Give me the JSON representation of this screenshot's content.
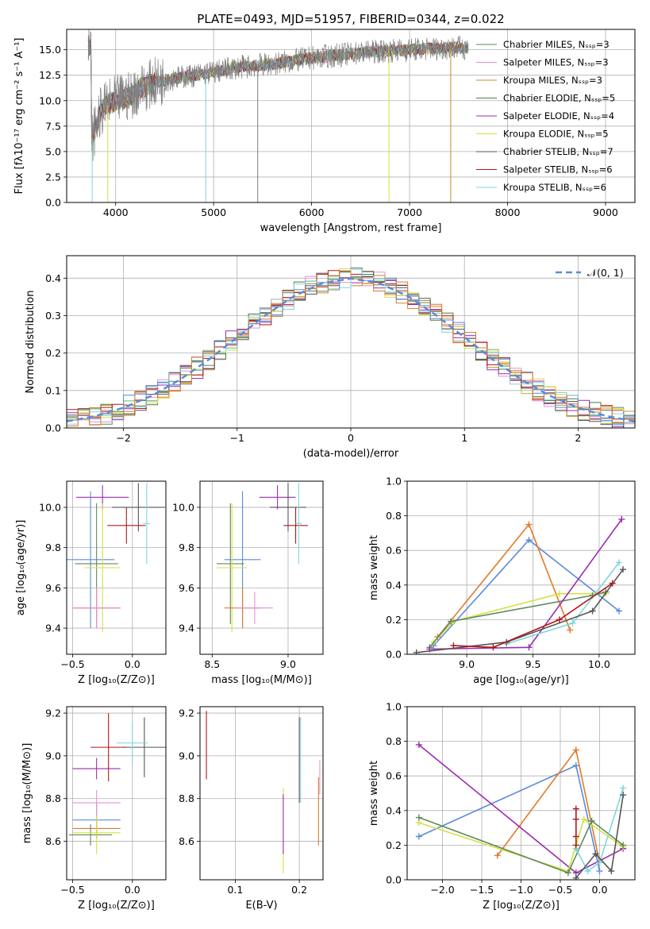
{
  "colors": [
    "#5e8a5e",
    "#e58fd6",
    "#c8892c",
    "#4e7a3c",
    "#9a2eb0",
    "#d6e040",
    "#555555",
    "#b01818",
    "#7fd6dc"
  ],
  "chart_data": [
    {
      "id": "spectrum",
      "type": "line",
      "title": "PLATE=0493, MJD=51957, FIBERID=0344, z=0.022",
      "xlabel": "wavelength [Angstrom, rest frame]",
      "ylabel": "Flux [fλ10⁻¹⁷ erg cm⁻² s⁻¹ A⁻¹]",
      "xlim": [
        3500,
        9300
      ],
      "ylim": [
        0,
        17
      ],
      "xticks": [
        "4000",
        "5000",
        "6000",
        "7000",
        "8000",
        "9000"
      ],
      "yticks": [
        "0.0",
        "2.5",
        "5.0",
        "7.5",
        "10.0",
        "12.5",
        "15.0"
      ],
      "legend_position": "top-right",
      "legend": [
        "Chabrier MILES, Nₛₛₚ=3",
        "Salpeter MILES, Nₛₛₚ=3",
        "Kroupa MILES, Nₛₛₚ=3",
        "Chabrier ELODIE, Nₛₛₚ=5",
        "Salpeter ELODIE, Nₛₛₚ=4",
        "Kroupa ELODIE, Nₛₛₚ=5",
        "Chabrier STELIB, Nₛₛₚ=7",
        "Salpeter STELIB, Nₛₛₚ=6",
        "Kroupa STELIB, Nₛₛₚ=6"
      ],
      "series": [
        {
          "color": "#808080",
          "x": [
            3750,
            3850,
            3950,
            4050,
            4150,
            4250,
            4400,
            4600,
            4800,
            5000,
            5200,
            5400,
            5600,
            5800,
            6000,
            6200,
            6400,
            6600,
            6800,
            7000,
            7200,
            7400,
            7600
          ],
          "y": [
            6.5,
            8.5,
            10.5,
            9.5,
            10.8,
            11.0,
            12.0,
            12.5,
            12.0,
            13.0,
            13.5,
            12.8,
            13.8,
            14.0,
            14.5,
            14.5,
            15.0,
            14.5,
            15.0,
            15.3,
            14.8,
            15.5,
            15.0
          ]
        },
        {
          "color": "#7fd6dc",
          "x": [
            3750,
            3850,
            3950,
            4050,
            4150,
            4250,
            4400,
            4600,
            4800,
            5000,
            5200,
            5400,
            5600,
            5800,
            6000,
            6200,
            6400,
            6600,
            6800,
            7000,
            7200,
            7400,
            7600
          ],
          "y": [
            6.0,
            9.0,
            9.8,
            10.2,
            10.5,
            11.2,
            11.8,
            12.2,
            12.5,
            12.8,
            13.2,
            13.4,
            13.6,
            13.9,
            14.2,
            14.4,
            14.6,
            14.8,
            14.9,
            15.0,
            15.1,
            15.2,
            15.2
          ]
        }
      ]
    },
    {
      "id": "residuals",
      "type": "line",
      "xlabel": "(data-model)/error",
      "ylabel": "Normed distribution",
      "xlim": [
        -2.5,
        2.5
      ],
      "ylim": [
        0,
        0.46
      ],
      "xticks": [
        "−2",
        "−1",
        "0",
        "1",
        "2"
      ],
      "yticks": [
        "0.0",
        "0.1",
        "0.2",
        "0.3",
        "0.4"
      ],
      "legend_position": "top-right",
      "legend": [
        "𝒩(0, 1)"
      ],
      "series": [
        {
          "name": "𝒩(0, 1)",
          "x": [
            -2.5,
            -2.25,
            -2.0,
            -1.75,
            -1.5,
            -1.25,
            -1.0,
            -0.75,
            -0.5,
            -0.25,
            0.0,
            0.25,
            0.5,
            0.75,
            1.0,
            1.25,
            1.5,
            1.75,
            2.0,
            2.25,
            2.5
          ],
          "y": [
            0.0175,
            0.0317,
            0.054,
            0.0863,
            0.1295,
            0.1826,
            0.242,
            0.3011,
            0.3521,
            0.3867,
            0.3989,
            0.3867,
            0.3521,
            0.3011,
            0.242,
            0.1826,
            0.1295,
            0.0863,
            0.054,
            0.0317,
            0.0175
          ]
        }
      ]
    },
    {
      "id": "age-vs-z",
      "type": "scatter",
      "xlabel": "Z [log₁₀(Z/Z⊙)]",
      "ylabel": "age  [log₁₀(age/yr)]",
      "xlim": [
        -0.55,
        0.28
      ],
      "ylim": [
        9.27,
        10.13
      ],
      "xticks": [
        "−0.5",
        "0.0"
      ],
      "yticks": [
        "9.4",
        "9.6",
        "9.8",
        "10.0"
      ]
    },
    {
      "id": "age-vs-mass",
      "type": "scatter",
      "xlabel": "mass [log₁₀(M/M⊙)]",
      "xlim": [
        8.42,
        9.23
      ],
      "ylim": [
        9.27,
        10.13
      ],
      "xticks": [
        "8.5",
        "9.0"
      ],
      "yticks": [
        "9.4",
        "9.6",
        "9.8",
        "10.0"
      ]
    },
    {
      "id": "weight-vs-age",
      "type": "line",
      "xlabel": "age  [log₁₀(age/yr)]",
      "ylabel": "mass weight",
      "xlim": [
        8.55,
        10.27
      ],
      "ylim": [
        0,
        1
      ],
      "xticks": [
        "9.0",
        "9.5",
        "10.0"
      ],
      "yticks": [
        "0.0",
        "0.2",
        "0.4",
        "0.6",
        "0.8",
        "1.0"
      ],
      "series": [
        {
          "color": "#5b8bd9",
          "x": [
            8.75,
            9.47,
            10.15
          ],
          "y": [
            0.05,
            0.66,
            0.25
          ]
        },
        {
          "color": "#e07b2a",
          "x": [
            8.78,
            9.47,
            9.78
          ],
          "y": [
            0.1,
            0.75,
            0.14
          ]
        },
        {
          "color": "#d6e040",
          "x": [
            8.75,
            8.9,
            9.7,
            10.05
          ],
          "y": [
            0.07,
            0.19,
            0.35,
            0.35
          ]
        },
        {
          "color": "#5e8a5e",
          "x": [
            8.72,
            8.88,
            9.95,
            10.05
          ],
          "y": [
            0.04,
            0.19,
            0.34,
            0.36
          ]
        },
        {
          "color": "#9a2eb0",
          "x": [
            8.72,
            9.47,
            10.17
          ],
          "y": [
            0.03,
            0.04,
            0.78
          ]
        },
        {
          "color": "#7fd6dc",
          "x": [
            9.3,
            9.8,
            10.15
          ],
          "y": [
            0.06,
            0.18,
            0.53
          ]
        },
        {
          "color": "#555555",
          "x": [
            8.62,
            9.3,
            9.95,
            10.18
          ],
          "y": [
            0.01,
            0.07,
            0.25,
            0.49
          ]
        },
        {
          "color": "#b01818",
          "x": [
            8.9,
            9.2,
            9.7,
            10.1
          ],
          "y": [
            0.05,
            0.04,
            0.2,
            0.41
          ]
        }
      ]
    },
    {
      "id": "mass-vs-z",
      "type": "scatter",
      "xlabel": "Z [log₁₀(Z/Z⊙)]",
      "ylabel": "mass [log₁₀(M/M⊙)]",
      "xlim": [
        -0.55,
        0.28
      ],
      "ylim": [
        8.42,
        9.23
      ],
      "xticks": [
        "−0.5",
        "0.0"
      ],
      "yticks": [
        "8.6",
        "8.8",
        "9.0",
        "9.2"
      ]
    },
    {
      "id": "mass-vs-ebv",
      "type": "scatter",
      "xlabel": "E(B-V)",
      "xlim": [
        0.045,
        0.237
      ],
      "ylim": [
        8.42,
        9.23
      ],
      "xticks": [
        "0.1",
        "0.2"
      ],
      "yticks": [
        "8.6",
        "8.8",
        "9.0",
        "9.2"
      ]
    },
    {
      "id": "weight-vs-z",
      "type": "line",
      "xlabel": "Z [log₁₀(Z/Z⊙)]",
      "ylabel": "mass weight",
      "xlim": [
        -2.45,
        0.45
      ],
      "ylim": [
        0,
        1
      ],
      "xticks": [
        "−2.0",
        "−1.5",
        "−1.0",
        "−0.5",
        "0.0"
      ],
      "yticks": [
        "0.0",
        "0.2",
        "0.4",
        "0.6",
        "0.8",
        "1.0"
      ],
      "series": [
        {
          "color": "#5b8bd9",
          "x": [
            -2.3,
            -0.3,
            0.0
          ],
          "y": [
            0.25,
            0.66,
            0.05
          ]
        },
        {
          "color": "#e07b2a",
          "x": [
            -1.3,
            -0.3,
            0.0
          ],
          "y": [
            0.14,
            0.75,
            0.1
          ]
        },
        {
          "color": "#9a2eb0",
          "x": [
            -2.3,
            -0.3,
            0.3
          ],
          "y": [
            0.78,
            0.04,
            0.18
          ]
        },
        {
          "color": "#d6e040",
          "x": [
            -2.3,
            -0.4,
            -0.2,
            0.3
          ],
          "y": [
            0.33,
            0.05,
            0.35,
            0.19
          ]
        },
        {
          "color": "#5e8a5e",
          "x": [
            -2.3,
            -0.4,
            -0.1,
            0.3
          ],
          "y": [
            0.36,
            0.04,
            0.34,
            0.2
          ]
        },
        {
          "color": "#7fd6dc",
          "x": [
            -0.3,
            -0.15,
            0.0,
            0.3
          ],
          "y": [
            0.18,
            0.05,
            0.1,
            0.53
          ]
        },
        {
          "color": "#555555",
          "x": [
            -0.3,
            -0.05,
            0.15,
            0.3
          ],
          "y": [
            0.01,
            0.15,
            0.05,
            0.49
          ]
        },
        {
          "color": "#b01818",
          "x": [
            -0.3,
            -0.3,
            -0.3,
            -0.3
          ],
          "y": [
            0.2,
            0.25,
            0.35,
            0.41
          ]
        }
      ]
    }
  ]
}
